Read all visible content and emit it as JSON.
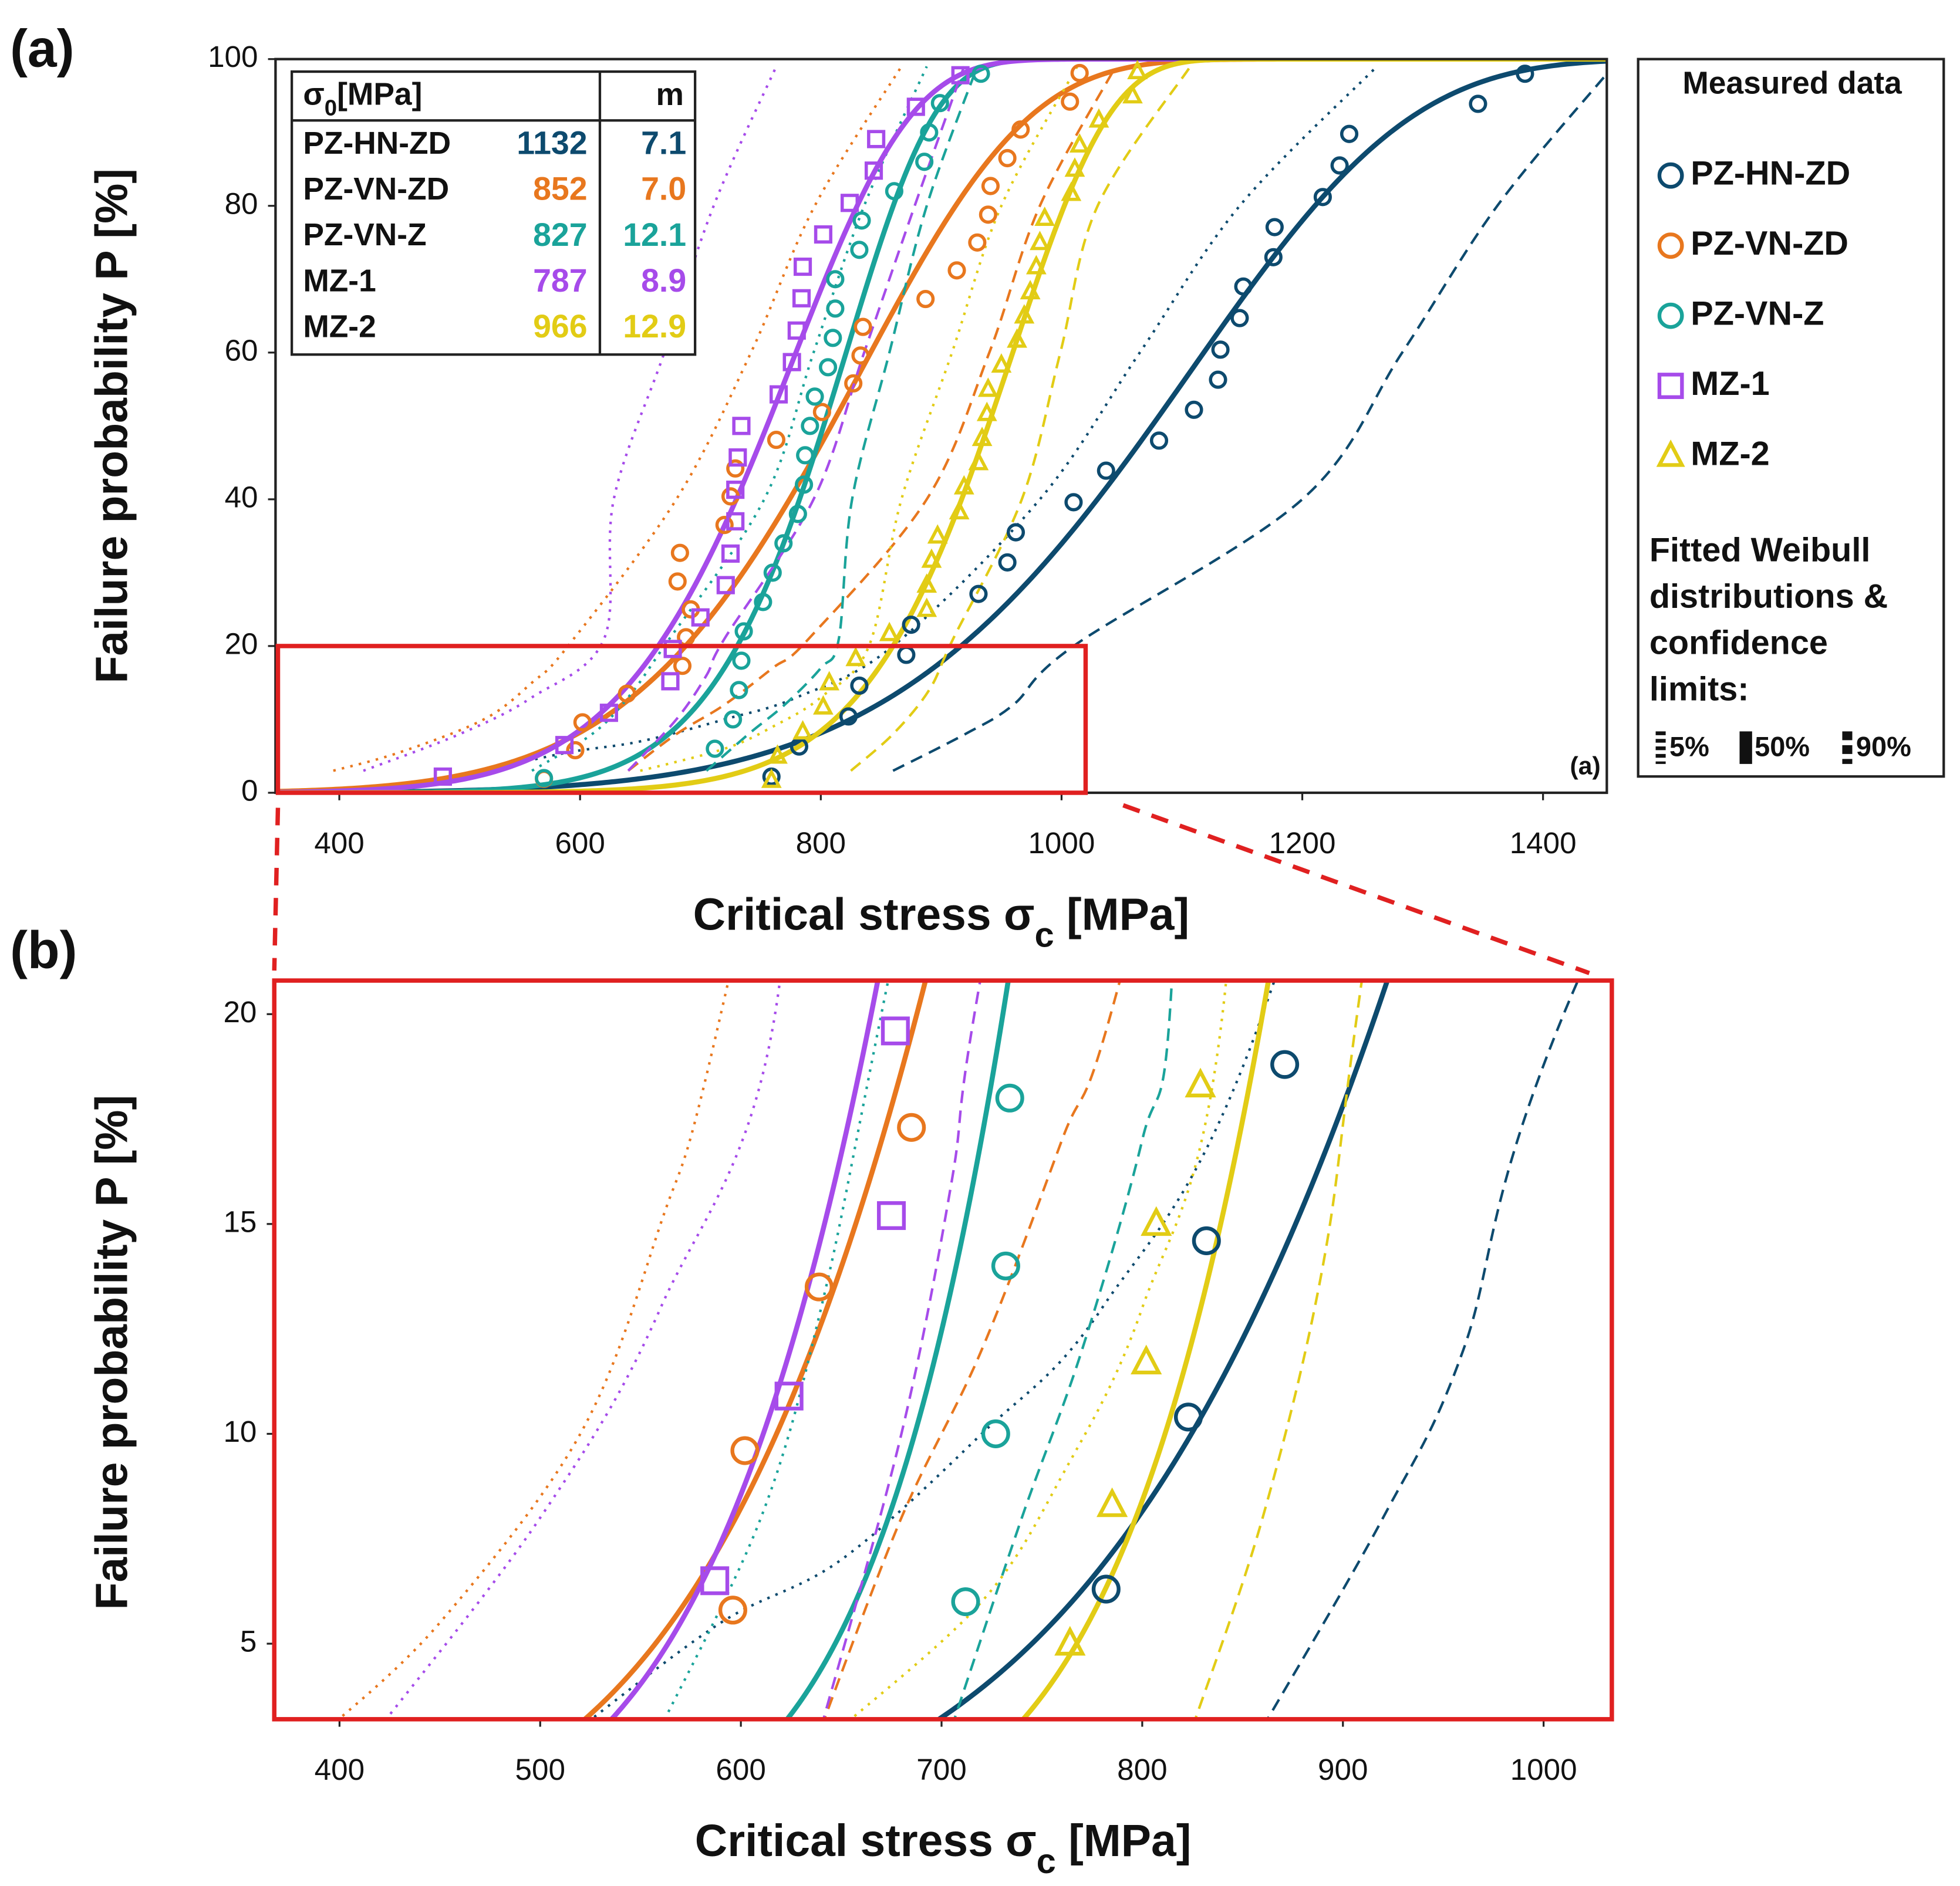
{
  "chart_data": [
    {
      "type": "scatter",
      "panel_label": "(a)",
      "inner_label": "(a)",
      "xlabel": [
        "Critical stress σ",
        "c",
        " [MPa]"
      ],
      "ylabel": "Failure probability P [%]",
      "xlim": [
        347,
        1453
      ],
      "ylim": [
        0,
        100
      ],
      "xticks": [
        400,
        600,
        800,
        1000,
        1200,
        1400
      ],
      "yticks": [
        0,
        20,
        40,
        60,
        80,
        100
      ],
      "zoom_box": {
        "xlim": [
          349,
          1020
        ],
        "ylim": [
          0,
          20
        ]
      },
      "table_header": [
        "σ",
        "0",
        "[MPa]"
      ],
      "table_m_header": "m",
      "legend_title": "Measured data",
      "legend_fit_title": [
        "Fitted Weibull",
        "distributions &",
        "confidence",
        "limits:"
      ],
      "confidence_labels": [
        "5%",
        "50%",
        "90%"
      ],
      "series": [
        {
          "name": "PZ-HN-ZD",
          "color": "#0d4a6e",
          "marker": "circle",
          "sigma0": 1132,
          "m": 7.1,
          "x": [
            759,
            782,
            823,
            832,
            871,
            875,
            931,
            955,
            962,
            1010,
            1037,
            1081,
            1110,
            1130,
            1132,
            1148,
            1151,
            1176,
            1177,
            1217,
            1231,
            1239,
            1346,
            1385
          ],
          "y": [
            2.2,
            6.3,
            10.4,
            14.6,
            18.8,
            22.9,
            27.1,
            31.4,
            35.5,
            39.6,
            43.9,
            48.0,
            52.2,
            56.3,
            60.4,
            64.7,
            69.0,
            73.0,
            77.1,
            81.2,
            85.5,
            89.8,
            93.9,
            98.0
          ],
          "ci_5": {
            "x": [
              520,
              590,
              650,
              720,
              780,
              860,
              982,
              1065,
              1148,
              1262
            ],
            "y": [
              3,
              5.5,
              7,
              10,
              13,
              20,
              40,
              60,
              80,
              99
            ]
          },
          "ci_90": {
            "x": [
              860,
              920,
              960,
              1010,
              1200,
              1283,
              1362,
              1453
            ],
            "y": [
              3,
              8,
              12,
              20,
              40,
              60,
              80,
              98
            ]
          }
        },
        {
          "name": "PZ-VN-ZD",
          "color": "#e8771e",
          "marker": "circle",
          "sigma0": 852,
          "m": 7.0,
          "m_label": "7.0",
          "x": [
            570,
            596,
            602,
            639,
            685,
            688,
            692,
            681,
            683,
            720,
            725,
            729,
            763,
            801,
            827,
            833,
            835,
            887,
            913,
            930,
            939,
            941,
            955,
            966,
            1007,
            1015
          ],
          "y": [
            1.9,
            5.8,
            9.6,
            13.5,
            17.3,
            21.2,
            25.0,
            28.8,
            32.7,
            36.5,
            40.4,
            44.2,
            48.1,
            51.9,
            55.8,
            59.6,
            63.5,
            67.3,
            71.2,
            75.0,
            78.8,
            82.7,
            86.5,
            90.4,
            94.2,
            98.1
          ],
          "ci_5": {
            "x": [
              395,
              450,
              520,
              560,
              590,
              680,
              742,
              795,
              867
            ],
            "y": [
              3,
              5.5,
              10,
              15,
              20,
              40,
              60,
              80,
              99
            ]
          },
          "ci_90": {
            "x": [
              640,
              680,
              720,
              760,
              790,
              888,
              940,
              982,
              1045
            ],
            "y": [
              3,
              8,
              12,
              17,
              21,
              40,
              60,
              80,
              99
            ]
          }
        },
        {
          "name": "PZ-VN-Z",
          "color": "#1aa39a",
          "marker": "circle",
          "sigma0": 827,
          "m": 12.1,
          "x": [
            570,
            712,
            727,
            732,
            734,
            736,
            752,
            760,
            769,
            781,
            786,
            787,
            791,
            795,
            806,
            810,
            812,
            812,
            832,
            834,
            861,
            886,
            890,
            899,
            933
          ],
          "y": [
            2,
            6,
            10,
            14,
            18,
            22,
            26,
            30,
            34,
            38,
            42,
            46,
            50,
            54,
            58,
            62,
            66,
            70,
            74,
            78,
            82,
            86,
            90,
            94,
            98
          ],
          "ci_5": {
            "x": [
              560,
              610,
              640,
              670,
              753,
              794,
              836,
              888
            ],
            "y": [
              3,
              8,
              13,
              20,
              40,
              60,
              80,
              99
            ]
          },
          "ci_90": {
            "x": [
              705,
              740,
              770,
              800,
              815,
              826,
              857,
              888,
              930
            ],
            "y": [
              3,
              8,
              12,
              17,
              21,
              40,
              60,
              80,
              99
            ]
          }
        },
        {
          "name": "MZ-1",
          "color": "#a64bea",
          "marker": "square",
          "sigma0": 787,
          "m": 8.9,
          "x": [
            486,
            587,
            624,
            675,
            677,
            700,
            721,
            725,
            729,
            729,
            731,
            734,
            765,
            776,
            780,
            784,
            785,
            802,
            824,
            844,
            846,
            879,
            916
          ],
          "y": [
            2.2,
            6.5,
            10.9,
            15.2,
            19.6,
            23.9,
            28.3,
            32.6,
            37.0,
            41.3,
            45.7,
            50.0,
            54.3,
            58.7,
            63.0,
            67.4,
            71.7,
            76.1,
            80.4,
            84.8,
            89.1,
            93.5,
            97.8
          ],
          "ci_5": {
            "x": [
              420,
              500,
              560,
              620,
              628,
              670,
              711,
              763
            ],
            "y": [
              3,
              8,
              13,
              21,
              40,
              60,
              80,
              99
            ]
          },
          "ci_90": {
            "x": [
              640,
              680,
              705,
              720,
              794,
              836,
              878,
              919
            ],
            "y": [
              3,
              10,
              16,
              21,
              40,
              60,
              80,
              99
            ]
          }
        },
        {
          "name": "MZ-2",
          "color": "#e2cc15",
          "marker": "triangle",
          "sigma0": 966,
          "m": 12.9,
          "x": [
            759,
            764,
            785,
            802,
            807,
            829,
            857,
            888,
            888,
            892,
            897,
            915,
            919,
            931,
            934,
            938,
            939,
            950,
            963,
            969,
            974,
            979,
            982,
            986,
            1008,
            1011,
            1015,
            1031,
            1059,
            1063
          ],
          "y": [
            1.7,
            5.0,
            8.3,
            11.7,
            15.0,
            18.3,
            21.7,
            25.0,
            28.3,
            31.7,
            35.0,
            38.3,
            41.7,
            45.0,
            48.3,
            51.7,
            55.0,
            58.3,
            61.7,
            65.0,
            68.3,
            71.7,
            75.0,
            78.3,
            81.7,
            85.0,
            88.3,
            91.7,
            95.0,
            98.3
          ],
          "ci_5": {
            "x": [
              650,
              720,
              760,
              800,
              840,
              867,
              909,
              950,
              1013
            ],
            "y": [
              3,
              6,
              9,
              13,
              20,
              40,
              60,
              80,
              99
            ]
          },
          "ci_90": {
            "x": [
              825,
              860,
              890,
              910,
              967,
              999,
              1030,
              1107
            ],
            "y": [
              3,
              8,
              14,
              21,
              40,
              60,
              80,
              99
            ]
          }
        }
      ]
    },
    {
      "type": "scatter",
      "panel_label": "(b)",
      "xlabel": [
        "Critical stress σ",
        "c",
        " [MPa]"
      ],
      "ylabel": "Failure probability P [%]",
      "xlim": [
        367.5,
        1034
      ],
      "ylim": [
        3.2,
        20.8
      ],
      "xticks": [
        400,
        500,
        600,
        700,
        800,
        900,
        1000
      ],
      "yticks": [
        5,
        10,
        15,
        20
      ]
    }
  ]
}
